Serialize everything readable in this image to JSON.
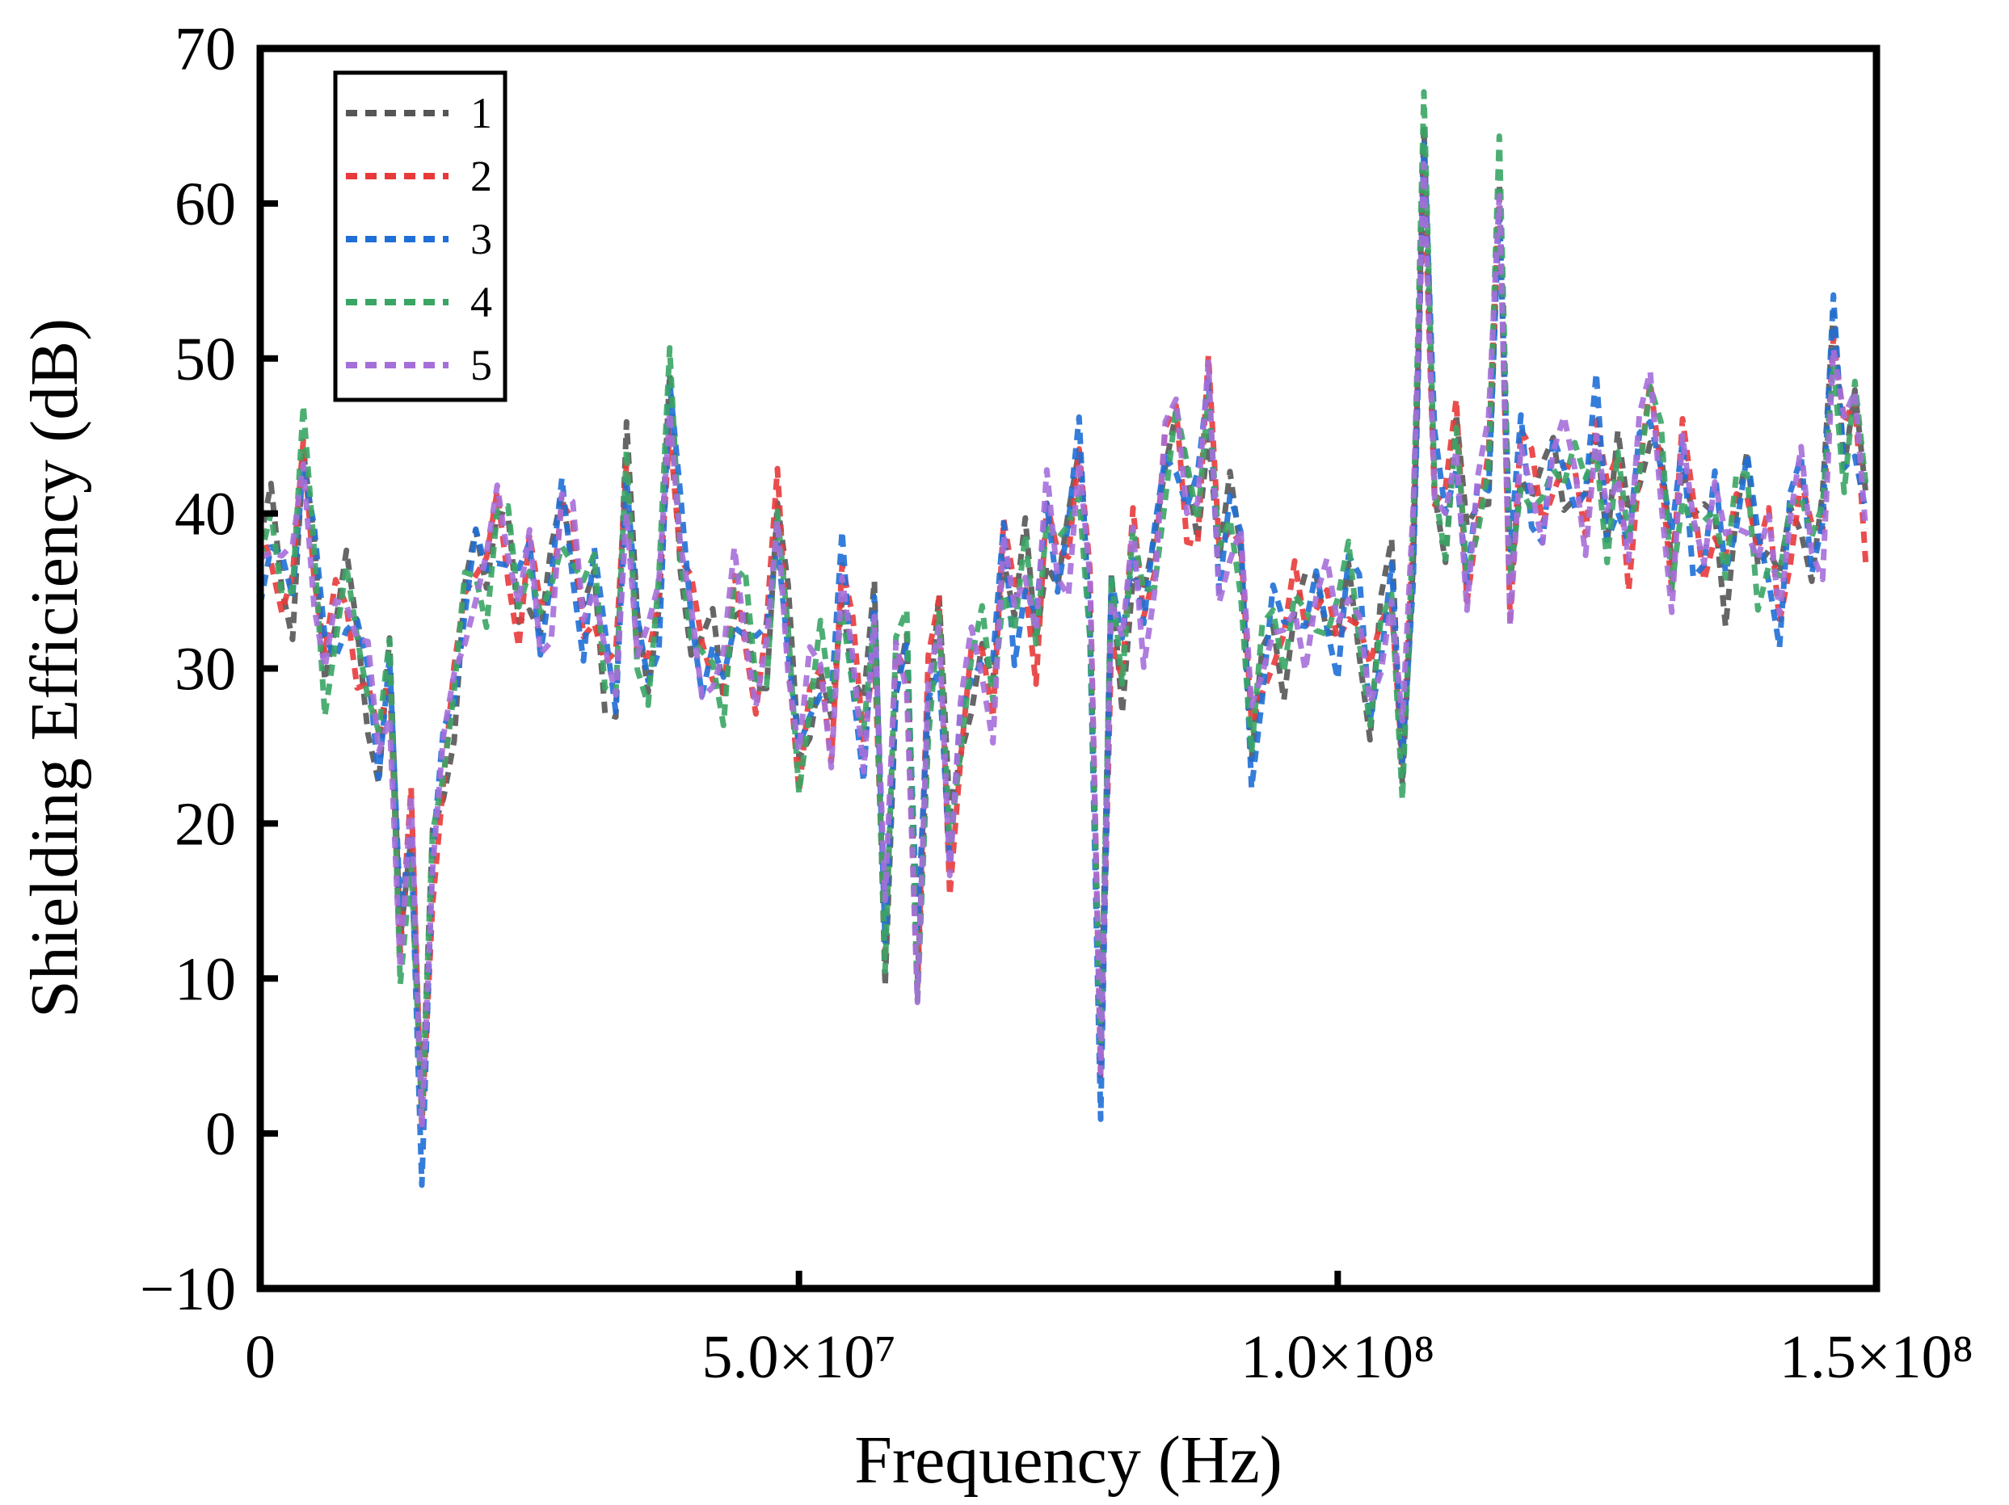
{
  "chart_data": {
    "type": "line",
    "title": "",
    "xlabel": "Frequency (Hz)",
    "ylabel": "Shielding Efficiency  (dB)",
    "xlim": [
      0,
      150000000
    ],
    "ylim": [
      -10,
      70
    ],
    "x_ticks": [
      0,
      50000000,
      100000000,
      150000000
    ],
    "x_tick_labels": [
      "0",
      "5.0×10⁷",
      "1.0×10⁸",
      "1.5×10⁸"
    ],
    "y_ticks": [
      -10,
      0,
      10,
      20,
      30,
      40,
      50,
      60,
      70
    ],
    "y_tick_labels": [
      "−10",
      "0",
      "10",
      "20",
      "30",
      "40",
      "50",
      "60",
      "70"
    ],
    "legend_position": "top-left",
    "grid": false,
    "x_step": 1000000,
    "series": [
      {
        "name": "1",
        "color": "#555555"
      },
      {
        "name": "2",
        "color": "#e83a3a"
      },
      {
        "name": "3",
        "color": "#1f6fd6"
      },
      {
        "name": "4",
        "color": "#3aa565"
      },
      {
        "name": "5",
        "color": "#a56fd9"
      }
    ],
    "base_values": [
      37,
      39,
      36,
      35,
      44,
      37,
      30,
      33,
      35,
      32,
      29,
      24,
      30,
      12,
      20,
      0,
      18,
      24,
      28,
      34,
      37,
      36,
      40,
      38,
      34,
      37,
      32,
      35,
      41,
      38,
      33,
      36,
      30,
      28,
      43,
      32,
      30,
      34,
      48,
      38,
      33,
      30,
      31,
      29,
      35,
      33,
      29,
      31,
      40,
      32,
      24,
      28,
      30,
      26,
      36,
      30,
      25,
      34,
      12,
      30,
      31,
      10,
      28,
      33,
      18,
      26,
      30,
      31,
      28,
      38,
      33,
      37,
      32,
      40,
      36,
      38,
      44,
      34,
      4,
      35,
      30,
      38,
      33,
      37,
      44,
      46,
      41,
      40,
      48,
      36,
      40,
      38,
      25,
      30,
      33,
      31,
      34,
      33,
      35,
      34,
      32,
      36,
      33,
      27,
      32,
      36,
      24,
      38,
      64,
      42,
      39,
      45,
      36,
      41,
      43,
      61,
      35,
      44,
      41,
      40,
      44,
      43,
      42,
      40,
      46,
      39,
      43,
      38,
      44,
      47,
      43,
      36,
      44,
      39,
      38,
      41,
      36,
      40,
      42,
      37,
      38,
      34,
      40,
      42,
      37,
      39,
      52,
      44,
      47,
      40
    ]
  },
  "legend": {
    "items": [
      "1",
      "2",
      "3",
      "4",
      "5"
    ]
  }
}
